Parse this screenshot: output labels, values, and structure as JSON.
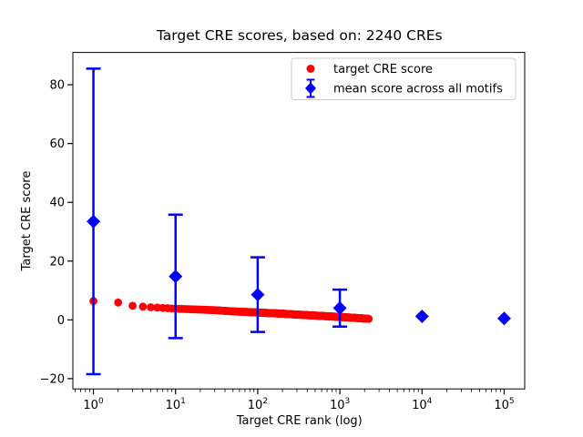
{
  "figure": {
    "background": "#ffffff"
  },
  "chart_data": {
    "type": "scatter",
    "title": "Target CRE scores, based on: 2240 CREs",
    "xlabel": "Target CRE rank (log)",
    "ylabel": "Target CRE score",
    "xscale": "log",
    "xlim": [
      0.5623,
      177828
    ],
    "ylim": [
      -23.5,
      91
    ],
    "xticks": [
      1,
      10,
      100,
      1000,
      10000,
      100000
    ],
    "xtick_labels": [
      "10^0",
      "10^1",
      "10^2",
      "10^3",
      "10^4",
      "10^5"
    ],
    "yticks": [
      -20,
      0,
      20,
      40,
      60,
      80
    ],
    "grid": false,
    "legend_position": "upper right",
    "series": [
      {
        "name": "target CRE score",
        "color": "#ff0000",
        "marker": "circle",
        "n_points": 2240,
        "description": "one red point per CRE rank 1..2240; score decays smoothly with log rank",
        "anchors": [
          [
            1,
            6.4
          ],
          [
            2,
            5.9
          ],
          [
            3,
            4.8
          ],
          [
            4,
            4.5
          ],
          [
            5,
            4.3
          ],
          [
            7,
            4.05
          ],
          [
            10,
            3.8
          ],
          [
            20,
            3.5
          ],
          [
            30,
            3.3
          ],
          [
            50,
            2.9
          ],
          [
            100,
            2.5
          ],
          [
            200,
            2.1
          ],
          [
            300,
            1.8
          ],
          [
            500,
            1.45
          ],
          [
            1000,
            1.0
          ],
          [
            1500,
            0.7
          ],
          [
            2000,
            0.45
          ],
          [
            2240,
            0.35
          ]
        ]
      },
      {
        "name": "mean score across all motifs",
        "color": "#0000ff",
        "marker": "diamond",
        "error_bars": true,
        "points": [
          {
            "x": 1,
            "mean": 33.5,
            "err": 52.0
          },
          {
            "x": 10,
            "mean": 14.8,
            "err": 21.0
          },
          {
            "x": 100,
            "mean": 8.6,
            "err": 12.7
          },
          {
            "x": 1000,
            "mean": 4.0,
            "err": 6.3
          },
          {
            "x": 10000,
            "mean": 1.2,
            "err": 0.8
          },
          {
            "x": 100000,
            "mean": 0.5,
            "err": 0.5
          }
        ]
      }
    ]
  },
  "legend": {
    "items": [
      {
        "label": "target CRE score",
        "marker": "red-circle",
        "color": "#ff0000"
      },
      {
        "label": "mean score across all motifs",
        "marker": "blue-diamond-errorbar",
        "color": "#0000ff"
      }
    ]
  }
}
